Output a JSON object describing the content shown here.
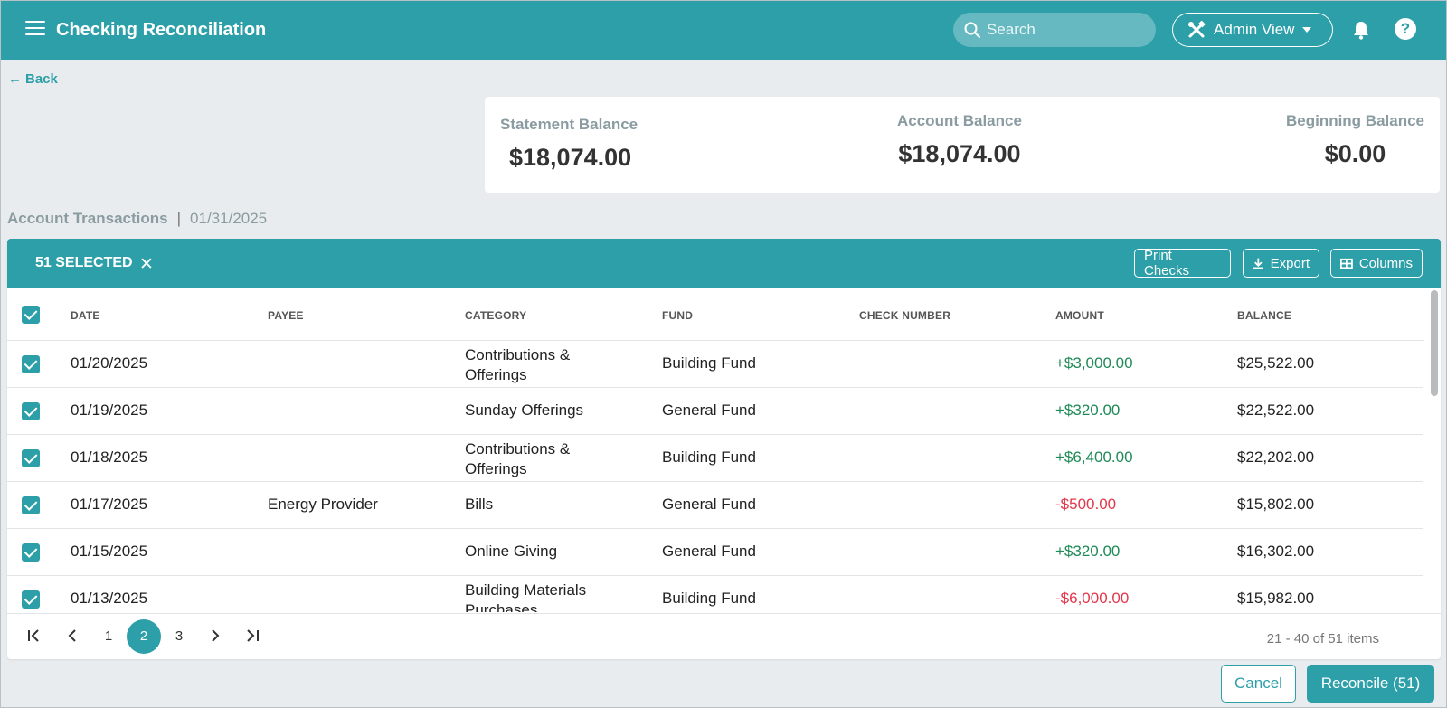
{
  "header": {
    "title": "Checking Reconciliation",
    "search_placeholder": "Search",
    "admin_label": "Admin View",
    "help_glyph": "?"
  },
  "back_label": "Back",
  "balances": {
    "statement": {
      "label": "Statement Balance",
      "value": "$18,074.00"
    },
    "account": {
      "label": "Account Balance",
      "value": "$18,074.00"
    },
    "beginning": {
      "label": "Beginning Balance",
      "value": "$0.00"
    }
  },
  "section": {
    "title": "Account Transactions",
    "separator": "|",
    "date": "01/31/2025"
  },
  "toolbar": {
    "selected_label": "51 SELECTED",
    "clear_glyph": "✕",
    "print_label": "Print Checks",
    "export_label": "Export",
    "columns_label": "Columns"
  },
  "columns": [
    "DATE",
    "PAYEE",
    "CATEGORY",
    "FUND",
    "CHECK NUMBER",
    "AMOUNT",
    "BALANCE"
  ],
  "rows": [
    {
      "date": "01/20/2025",
      "payee": "",
      "category": [
        "Contributions &",
        "Offerings"
      ],
      "fund": "Building Fund",
      "check": "",
      "amount": "+$3,000.00",
      "amount_sign": "pos",
      "balance": "$25,522.00"
    },
    {
      "date": "01/19/2025",
      "payee": "",
      "category": [
        "Sunday Offerings"
      ],
      "fund": "General Fund",
      "check": "",
      "amount": "+$320.00",
      "amount_sign": "pos",
      "balance": "$22,522.00"
    },
    {
      "date": "01/18/2025",
      "payee": "",
      "category": [
        "Contributions &",
        "Offerings"
      ],
      "fund": "Building Fund",
      "check": "",
      "amount": "+$6,400.00",
      "amount_sign": "pos",
      "balance": "$22,202.00"
    },
    {
      "date": "01/17/2025",
      "payee": "Energy Provider",
      "category": [
        "Bills"
      ],
      "fund": "General Fund",
      "check": "",
      "amount": "-$500.00",
      "amount_sign": "neg",
      "balance": "$15,802.00"
    },
    {
      "date": "01/15/2025",
      "payee": "",
      "category": [
        "Online Giving"
      ],
      "fund": "General Fund",
      "check": "",
      "amount": "+$320.00",
      "amount_sign": "pos",
      "balance": "$16,302.00"
    },
    {
      "date": "01/13/2025",
      "payee": "",
      "category": [
        "Building Materials",
        "Purchases"
      ],
      "fund": "Building Fund",
      "check": "",
      "amount": "-$6,000.00",
      "amount_sign": "neg",
      "balance": "$15,982.00"
    }
  ],
  "pager": {
    "pages": [
      "1",
      "2",
      "3"
    ],
    "current": "2",
    "info": "21 - 40 of 51 items"
  },
  "footer": {
    "cancel_label": "Cancel",
    "reconcile_label": "Reconcile (51)"
  },
  "colors": {
    "accent": "#2c9fa8",
    "positive": "#1f8a57",
    "negative": "#e2374a"
  }
}
